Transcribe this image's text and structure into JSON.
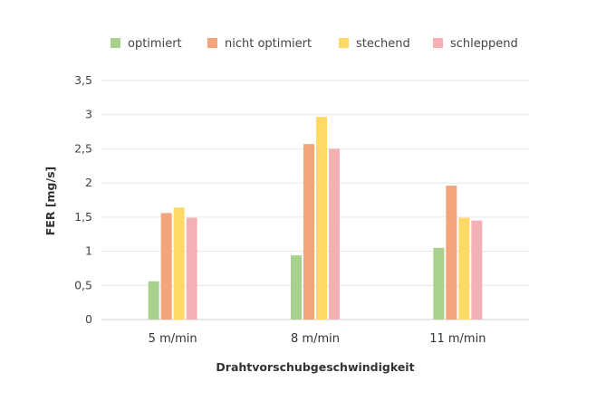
{
  "chart_data": {
    "type": "bar",
    "title": "",
    "xlabel": "Drahtvorschubgeschwindigkeit",
    "ylabel": "FER [mg/s]",
    "categories": [
      "5 m/min",
      "8 m/min",
      "11 m/min"
    ],
    "series": [
      {
        "name": "optimiert",
        "color": "#a9d18e",
        "values": [
          0.56,
          0.94,
          1.05
        ]
      },
      {
        "name": "nicht optimiert",
        "color": "#f4a47a",
        "values": [
          1.56,
          2.57,
          1.96
        ]
      },
      {
        "name": "stechend",
        "color": "#ffd966",
        "values": [
          1.64,
          2.97,
          1.49
        ]
      },
      {
        "name": "schleppend",
        "color": "#f4b1b5",
        "values": [
          1.49,
          2.5,
          1.45
        ]
      }
    ],
    "ylim": [
      0,
      3.5
    ],
    "yticks": [
      0,
      0.5,
      1,
      1.5,
      2,
      2.5,
      3,
      3.5
    ],
    "ytick_labels": [
      "0",
      "0,5",
      "1",
      "1,5",
      "2",
      "2,5",
      "3",
      "3,5"
    ],
    "grid": true,
    "legend_position": "top",
    "colors": {
      "grid": "#e6e6e6",
      "axis": "#d0d0d0"
    }
  }
}
